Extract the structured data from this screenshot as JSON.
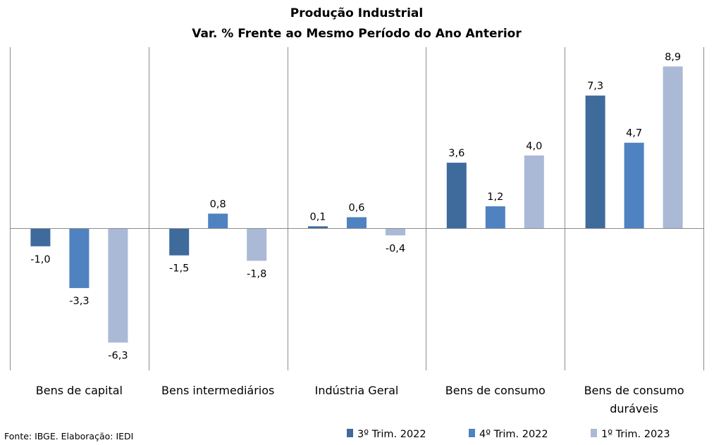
{
  "chart_data": {
    "type": "bar",
    "title": "Produção Industrial",
    "subtitle": "Var. %  Frente ao Mesmo Período do Ano Anterior",
    "categories": [
      "Bens de capital",
      "Bens intermediários",
      "Indústria Geral",
      "Bens de consumo",
      "Bens de consumo duráveis"
    ],
    "category_lines": [
      [
        "Bens de capital"
      ],
      [
        "Bens intermediários"
      ],
      [
        "Indústria Geral"
      ],
      [
        "Bens de consumo"
      ],
      [
        "Bens de consumo",
        "duráveis"
      ]
    ],
    "series": [
      {
        "name": "3º Trim. 2022",
        "color": "#3F6A9C",
        "values": [
          -1.0,
          -1.5,
          0.1,
          3.6,
          7.3
        ],
        "labels": [
          "-1,0",
          "-1,5",
          "0,1",
          "3,6",
          "7,3"
        ]
      },
      {
        "name": "4º Trim. 2022",
        "color": "#4F82C0",
        "values": [
          -3.3,
          0.8,
          0.6,
          1.2,
          4.7
        ],
        "labels": [
          "-3,3",
          "0,8",
          "0,6",
          "1,2",
          "4,7"
        ]
      },
      {
        "name": "1º Trim. 2023",
        "color": "#AAB9D6",
        "values": [
          -6.3,
          -1.8,
          -0.4,
          4.0,
          8.9
        ],
        "labels": [
          "-6,3",
          "-1,8",
          "-0,4",
          "4,0",
          "8,9"
        ]
      }
    ],
    "ylim": [
      -7.9,
      10.0
    ],
    "grid": false,
    "legend_placement": "bottom-right"
  },
  "source": "Fonte: IBGE. Elaboração: IEDI"
}
